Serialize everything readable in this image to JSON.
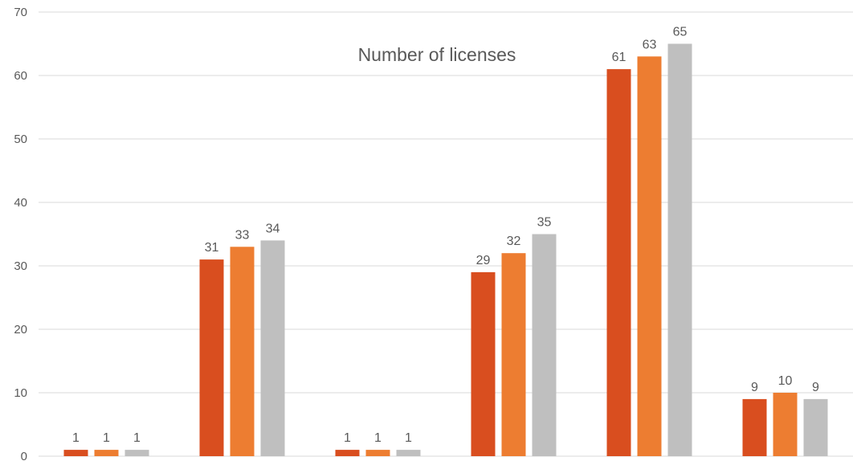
{
  "chart_data": {
    "type": "bar",
    "title": "Number of licenses",
    "xlabel": "",
    "ylabel": "",
    "categories": [
      "",
      "",
      "",
      "",
      "",
      ""
    ],
    "ylim": [
      0,
      70
    ],
    "yticks": [
      0,
      10,
      20,
      30,
      40,
      50,
      60,
      70
    ],
    "grid": true,
    "data_labels": true,
    "legend": "none",
    "series": [
      {
        "color": "#d94e1f",
        "values": [
          1,
          31,
          1,
          29,
          61,
          9
        ]
      },
      {
        "color": "#ed7d31",
        "values": [
          1,
          33,
          1,
          32,
          63,
          10
        ]
      },
      {
        "color": "#bfbfbf",
        "values": [
          1,
          34,
          1,
          35,
          65,
          9
        ]
      }
    ]
  }
}
